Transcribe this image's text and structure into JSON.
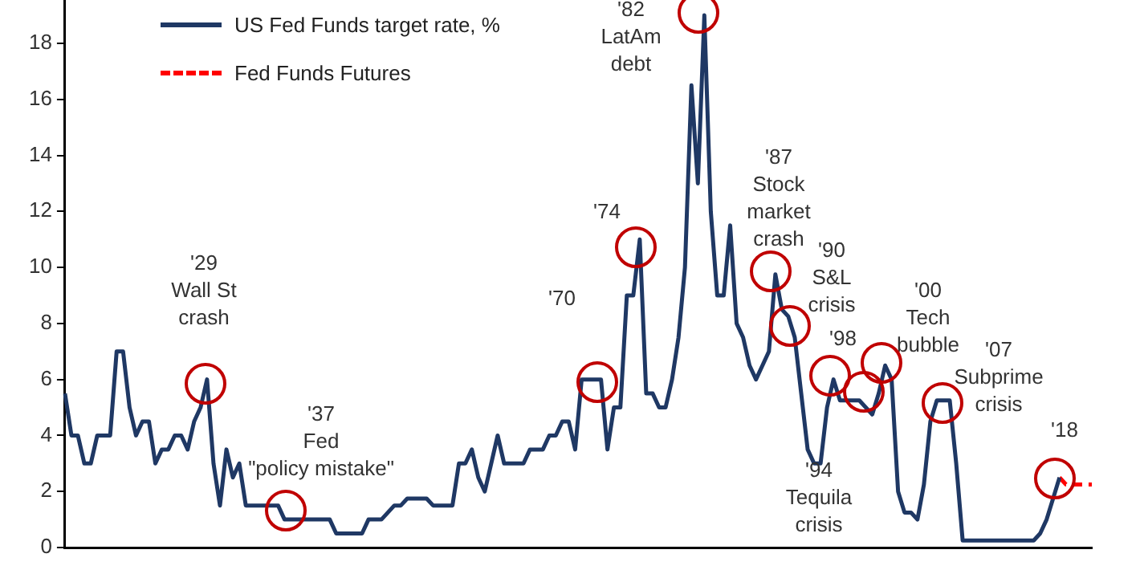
{
  "chart_data": {
    "type": "line",
    "categories": [
      null,
      null,
      null,
      null,
      null,
      null,
      null,
      null,
      null,
      null,
      null,
      null,
      null,
      null,
      null,
      null,
      null,
      null,
      null,
      null,
      null,
      null,
      null,
      null,
      null,
      null,
      null,
      null,
      null,
      null,
      null,
      null,
      null,
      null,
      null,
      null,
      null,
      null,
      null,
      null,
      null,
      null,
      null,
      null,
      null,
      null,
      null,
      null,
      null,
      null,
      null,
      null,
      null,
      null,
      null,
      null,
      null,
      null,
      null,
      null,
      null,
      null,
      null,
      null,
      null,
      null,
      null,
      null,
      null,
      null,
      null,
      null,
      null,
      null,
      null,
      null,
      null,
      null,
      null,
      null,
      null,
      null,
      null,
      null,
      null,
      null,
      null,
      null,
      null,
      null,
      null,
      null,
      null,
      null,
      null,
      null,
      null,
      null,
      null,
      null,
      null,
      null,
      null,
      null,
      null,
      null,
      null,
      null,
      null,
      null,
      null,
      null,
      null,
      null,
      null,
      null,
      null,
      null,
      null,
      null,
      null,
      null,
      null,
      null,
      null,
      null,
      null,
      null,
      null,
      null,
      null,
      null,
      null,
      null,
      null,
      null,
      null,
      null,
      null,
      null,
      null,
      null,
      null,
      null,
      null,
      null,
      null,
      null,
      null,
      null,
      null,
      null,
      null,
      null,
      null,
      null,
      null,
      null,
      null,
      null
    ],
    "series": [
      {
        "name": "US Fed Funds target rate, %",
        "color": "#1f3864",
        "line_style": "solid",
        "values": [
          5.5,
          4,
          4,
          3,
          3,
          4,
          4,
          4,
          7,
          7,
          5,
          4,
          4.5,
          4.5,
          3,
          3.5,
          3.5,
          4,
          4,
          3.5,
          4.5,
          5,
          6,
          3,
          1.5,
          3.5,
          2.5,
          3,
          1.5,
          1.5,
          1.5,
          1.5,
          1.5,
          1.5,
          1,
          1,
          1,
          1,
          1,
          1,
          1,
          1,
          0.5,
          0.5,
          0.5,
          0.5,
          0.5,
          1,
          1,
          1,
          1.25,
          1.5,
          1.5,
          1.75,
          1.75,
          1.75,
          1.75,
          1.5,
          1.5,
          1.5,
          1.5,
          3,
          3,
          3.5,
          2.5,
          2,
          3,
          4,
          3,
          3,
          3,
          3,
          3.5,
          3.5,
          3.5,
          4,
          4,
          4.5,
          4.5,
          3.5,
          6,
          6,
          6,
          6,
          3.5,
          5,
          5,
          9,
          9,
          11,
          5.5,
          5.5,
          5,
          5,
          6,
          7.5,
          10,
          16.5,
          13,
          19,
          12,
          9,
          9,
          11.5,
          8,
          7.5,
          6.5,
          6,
          6.5,
          7,
          9.75,
          8.5,
          8.25,
          7.5,
          5.5,
          3.5,
          3,
          3,
          5,
          6,
          5.25,
          5.25,
          5.25,
          5.25,
          5,
          4.75,
          5.5,
          6.5,
          6,
          2,
          1.25,
          1.25,
          1,
          2.25,
          4.5,
          5.25,
          5.25,
          5.25,
          3,
          0.25,
          0.25,
          0.25,
          0.25,
          0.25,
          0.25,
          0.25,
          0.25,
          0.25,
          0.25,
          0.25,
          0.25,
          0.5,
          1,
          1.75,
          2.5,
          null,
          null,
          null,
          null,
          null
        ]
      },
      {
        "name": "Fed Funds Futures",
        "color": "#ff0000",
        "line_style": "dashed",
        "values": [
          null,
          null,
          null,
          null,
          null,
          null,
          null,
          null,
          null,
          null,
          null,
          null,
          null,
          null,
          null,
          null,
          null,
          null,
          null,
          null,
          null,
          null,
          null,
          null,
          null,
          null,
          null,
          null,
          null,
          null,
          null,
          null,
          null,
          null,
          null,
          null,
          null,
          null,
          null,
          null,
          null,
          null,
          null,
          null,
          null,
          null,
          null,
          null,
          null,
          null,
          null,
          null,
          null,
          null,
          null,
          null,
          null,
          null,
          null,
          null,
          null,
          null,
          null,
          null,
          null,
          null,
          null,
          null,
          null,
          null,
          null,
          null,
          null,
          null,
          null,
          null,
          null,
          null,
          null,
          null,
          null,
          null,
          null,
          null,
          null,
          null,
          null,
          null,
          null,
          null,
          null,
          null,
          null,
          null,
          null,
          null,
          null,
          null,
          null,
          null,
          null,
          null,
          null,
          null,
          null,
          null,
          null,
          null,
          null,
          null,
          null,
          null,
          null,
          null,
          null,
          null,
          null,
          null,
          null,
          null,
          null,
          null,
          null,
          null,
          null,
          null,
          null,
          null,
          null,
          null,
          null,
          null,
          null,
          null,
          null,
          null,
          null,
          null,
          null,
          null,
          null,
          null,
          null,
          null,
          null,
          null,
          null,
          null,
          null,
          null,
          null,
          null,
          null,
          null,
          2.5,
          2.25,
          2.25,
          2.25,
          2.25,
          2.25
        ]
      }
    ],
    "ylim": [
      0,
      19.5
    ],
    "yticks": [
      0,
      2,
      4,
      6,
      8,
      10,
      12,
      14,
      16,
      18
    ],
    "tick_labels": "y",
    "grid": false,
    "legend": "top left",
    "marker": "none",
    "annotations": [
      "'29\nWall St\ncrash",
      "'37\nFed\n\"policy mistake\"",
      "'70",
      "'74",
      "'82\nLatAm\ndebt",
      "'87\nStock\nmarket\ncrash",
      "'90\nS&L\ncrisis",
      "'94\nTequila\ncrisis",
      "'98",
      "'00\nTech\nbubble",
      "'07\nSubprime\ncrisis",
      "'18"
    ]
  }
}
